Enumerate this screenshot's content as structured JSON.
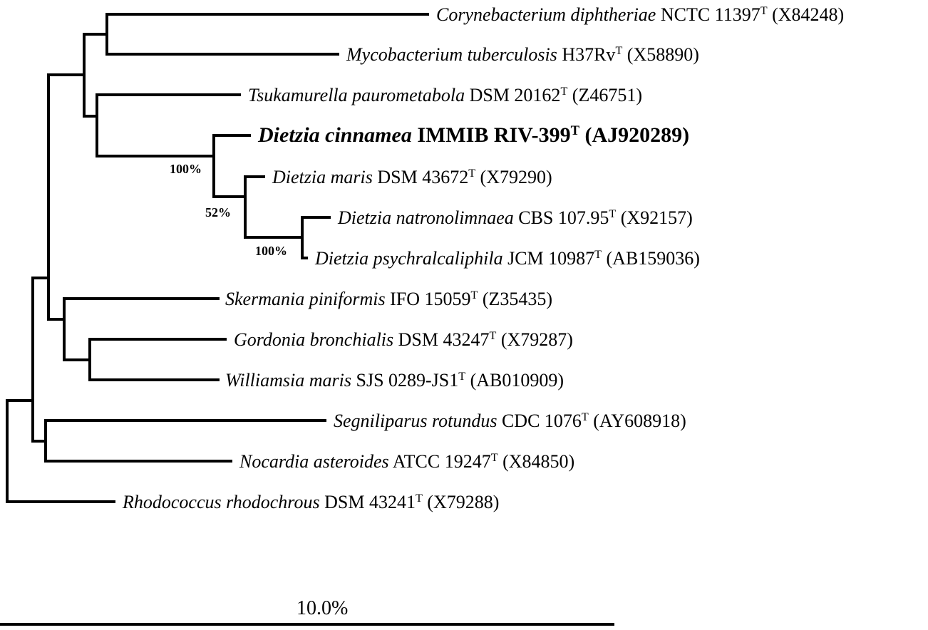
{
  "taxa": [
    {
      "genus_species": "Corynebacterium diphtheriae",
      "strain": "NCTC 11397",
      "type": "T",
      "accession": "(X84248)"
    },
    {
      "genus_species": "Mycobacterium tuberculosis",
      "strain": "H37Rv",
      "type": "T",
      "accession": "(X58890)"
    },
    {
      "genus_species": "Tsukamurella paurometabola",
      "strain": "DSM 20162",
      "type": "T",
      "accession": "(Z46751)"
    },
    {
      "genus_species": "Dietzia cinnamea",
      "strain": "IMMIB RIV-399",
      "type": "T",
      "accession": "(AJ920289)"
    },
    {
      "genus_species": "Dietzia maris",
      "strain": "DSM 43672",
      "type": "T",
      "accession": "(X79290)"
    },
    {
      "genus_species": "Dietzia natronolimnaea",
      "strain": "CBS 107.95",
      "type": "T",
      "accession": "(X92157)"
    },
    {
      "genus_species": "Dietzia psychralcaliphila",
      "strain": "JCM 10987",
      "type": "T",
      "accession": "(AB159036)"
    },
    {
      "genus_species": "Skermania piniformis",
      "strain": "IFO 15059",
      "type": "T",
      "accession": "(Z35435)"
    },
    {
      "genus_species": "Gordonia bronchialis",
      "strain": "DSM 43247",
      "type": "T",
      "accession": "(X79287)"
    },
    {
      "genus_species": "Williamsia maris",
      "strain": "SJS 0289-JS1",
      "type": "T",
      "accession": "(AB010909)"
    },
    {
      "genus_species": "Segniliparus rotundus",
      "strain": "CDC 1076",
      "type": "T",
      "accession": "(AY608918)"
    },
    {
      "genus_species": "Nocardia asteroides",
      "strain": "ATCC 19247",
      "type": "T",
      "accession": "(X84850)"
    },
    {
      "genus_species": "Rhodococcus rhodochrous",
      "strain": "DSM 43241",
      "type": "T",
      "accession": "(X79288)"
    }
  ],
  "bootstrap": [
    "100%",
    "52%",
    "100%"
  ],
  "scale_bar": {
    "label": "10.0%"
  }
}
